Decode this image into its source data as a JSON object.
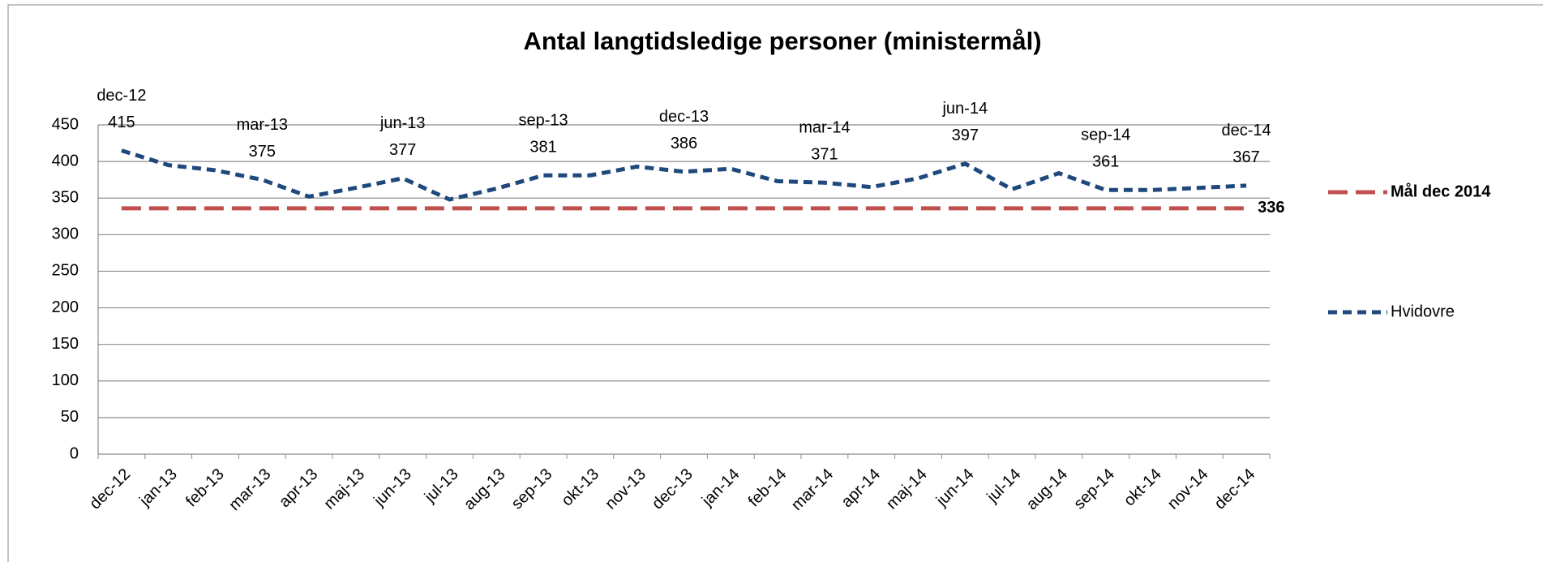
{
  "chart_data": {
    "type": "line",
    "title": "Antal langtidsledige personer (ministermål)",
    "categories": [
      "dec-12",
      "jan-13",
      "feb-13",
      "mar-13",
      "apr-13",
      "maj-13",
      "jun-13",
      "jul-13",
      "aug-13",
      "sep-13",
      "okt-13",
      "nov-13",
      "dec-13",
      "jan-14",
      "feb-14",
      "mar-14",
      "apr-14",
      "maj-14",
      "jun-14",
      "jul-14",
      "aug-14",
      "sep-14",
      "okt-14",
      "nov-14",
      "dec-14"
    ],
    "series": [
      {
        "name": "Mål dec 2014",
        "color": "#c0504d",
        "values": [
          336,
          336,
          336,
          336,
          336,
          336,
          336,
          336,
          336,
          336,
          336,
          336,
          336,
          336,
          336,
          336,
          336,
          336,
          336,
          336,
          336,
          336,
          336,
          336,
          336
        ]
      },
      {
        "name": "Hvidovre",
        "color": "#1f497d",
        "values": [
          415,
          395,
          388,
          375,
          352,
          364,
          377,
          348,
          363,
          381,
          381,
          393,
          386,
          390,
          373,
          371,
          365,
          377,
          397,
          362,
          384,
          361,
          361,
          364,
          367
        ]
      }
    ],
    "ylim": [
      0,
      450
    ],
    "yticks": [
      0,
      50,
      100,
      150,
      200,
      250,
      300,
      350,
      400,
      450
    ],
    "grid": true,
    "legend": "right"
  }
}
